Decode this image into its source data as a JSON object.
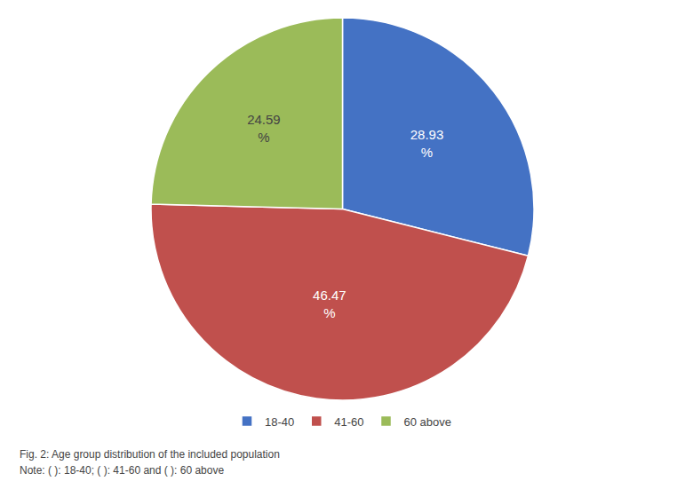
{
  "chart_data": {
    "type": "pie",
    "categories": [
      "18-40",
      "41-60",
      "60 above"
    ],
    "values": [
      28.93,
      46.47,
      24.59
    ],
    "value_labels": [
      "28.93\n%",
      "46.47\n%",
      "24.59\n%"
    ],
    "colors": [
      "#4472C4",
      "#C0504D",
      "#9BBB59"
    ],
    "data_labels": true,
    "legend": "bottom",
    "annotations": [
      "Fig. 2: Age group distribution of the included population",
      "Note: ( ): 18-40; ( ): 41-60 and ( ): 60 above"
    ]
  }
}
